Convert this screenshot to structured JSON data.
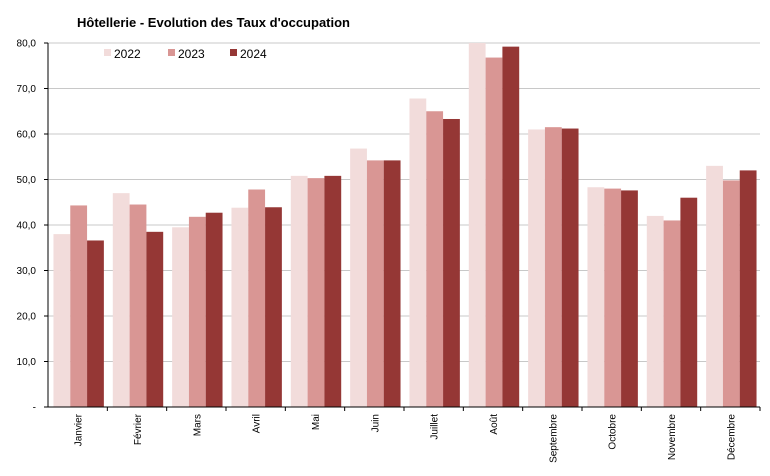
{
  "chart_data": {
    "type": "bar",
    "title": "Hôtellerie - Evolution des Taux d'occupation",
    "xlabel": "",
    "ylabel": "",
    "ylim": [
      0,
      80
    ],
    "yticks": [
      0,
      10,
      20,
      30,
      40,
      50,
      60,
      70,
      80
    ],
    "ytick_labels": [
      "-",
      "10,0",
      "20,0",
      "30,0",
      "40,0",
      "50,0",
      "60,0",
      "70,0",
      "80,0"
    ],
    "grid": true,
    "legend_position": "top-left",
    "categories": [
      "Janvier",
      "Février",
      "Mars",
      "Avril",
      "Mai",
      "Juin",
      "Juillet",
      "Août",
      "Septembre",
      "Octobre",
      "Novembre",
      "Décembre"
    ],
    "series": [
      {
        "name": "2022",
        "color": "#f2dcdb",
        "values": [
          38.0,
          47.0,
          39.5,
          43.8,
          50.8,
          56.8,
          67.8,
          80.0,
          61.0,
          48.3,
          42.0,
          53.0
        ]
      },
      {
        "name": "2023",
        "color": "#d99694",
        "values": [
          44.3,
          44.5,
          41.8,
          47.8,
          50.3,
          54.2,
          65.0,
          76.8,
          61.5,
          48.0,
          41.0,
          49.8
        ]
      },
      {
        "name": "2024",
        "color": "#953735",
        "values": [
          36.6,
          38.5,
          42.7,
          43.9,
          50.8,
          54.2,
          63.3,
          79.2,
          61.2,
          47.6,
          46.0,
          52.0
        ]
      }
    ]
  }
}
